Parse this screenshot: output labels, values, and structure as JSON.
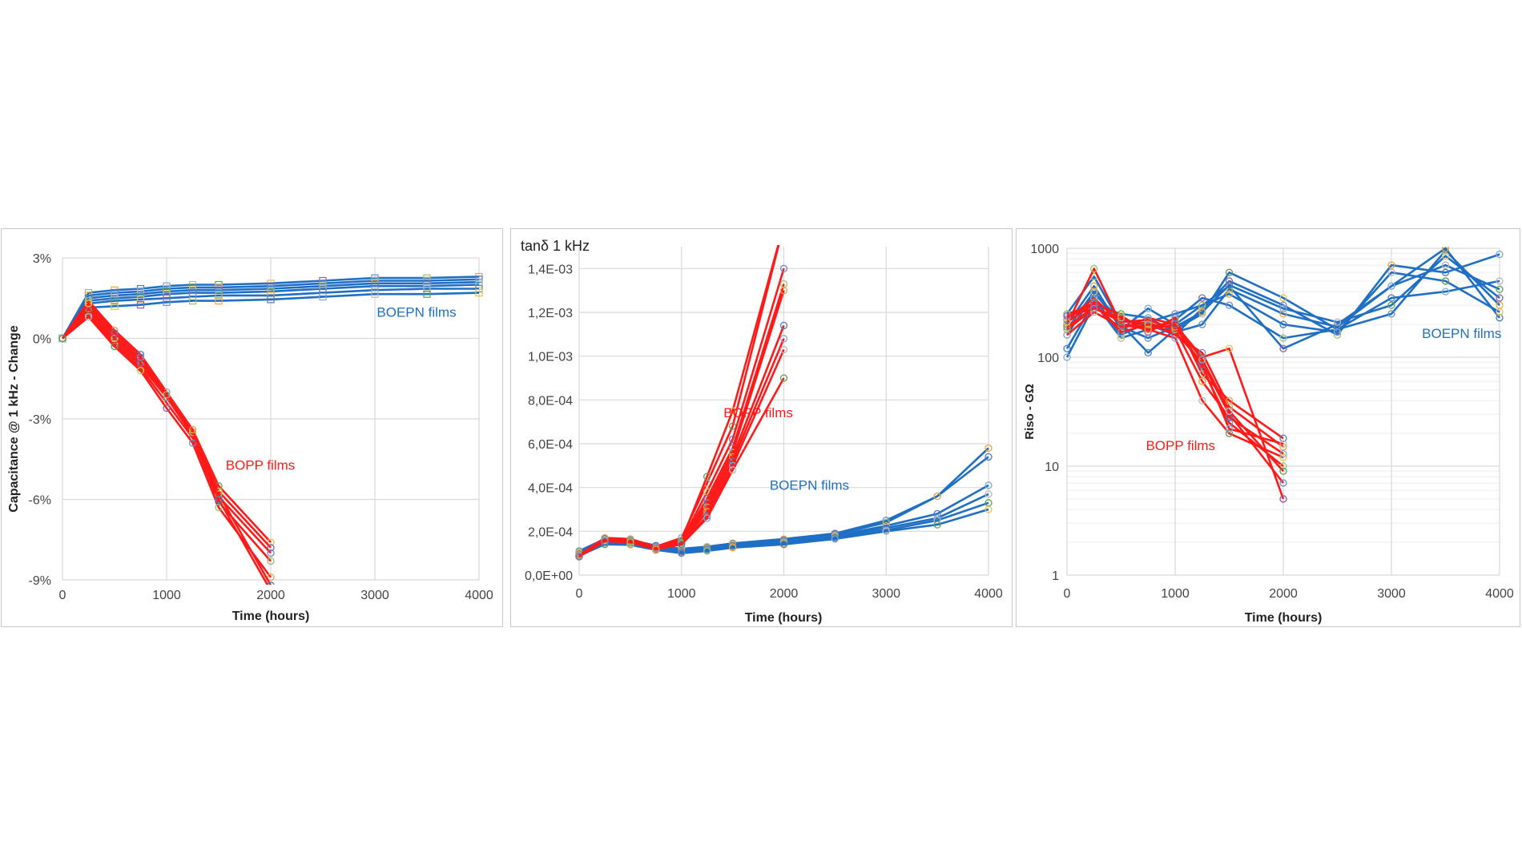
{
  "colors": {
    "bopp": "#ff1a1a",
    "boepn": "#1f6fc5"
  },
  "chart_data": [
    {
      "type": "line",
      "ylabel": "Capacitance @ 1 kHz - Change",
      "xlabel": "Time (hours)",
      "xlim": [
        0,
        4000
      ],
      "ylim": [
        -9,
        3
      ],
      "xticks": [
        0,
        1000,
        2000,
        3000,
        4000
      ],
      "xtick_labels": [
        "0",
        "1000",
        "2000",
        "3000",
        "4000"
      ],
      "yticks": [
        3,
        0,
        -3,
        -6,
        -9
      ],
      "ytick_labels": [
        "3%",
        "0%",
        "-3%",
        "-6%",
        "-9%"
      ],
      "annotations": [
        {
          "text": "BOEPN films",
          "x": 3400,
          "y": 0.8,
          "color": "boepn"
        },
        {
          "text": "BOPP films",
          "x": 1900,
          "y": -4.9,
          "color": "bopp"
        }
      ],
      "group_b": {
        "x": [
          0,
          250,
          500,
          750,
          1000,
          1250,
          1500,
          2000,
          2500,
          3000,
          3500,
          4000
        ],
        "lines": [
          [
            0,
            1.7,
            1.8,
            1.85,
            1.95,
            2.0,
            2.0,
            2.05,
            2.15,
            2.25,
            2.25,
            2.3
          ],
          [
            0,
            1.6,
            1.7,
            1.75,
            1.85,
            1.9,
            1.9,
            1.95,
            2.05,
            2.15,
            2.15,
            2.2
          ],
          [
            0,
            1.5,
            1.6,
            1.65,
            1.75,
            1.8,
            1.8,
            1.85,
            1.95,
            2.05,
            2.05,
            2.1
          ],
          [
            0,
            1.4,
            1.5,
            1.55,
            1.65,
            1.7,
            1.7,
            1.75,
            1.85,
            1.95,
            1.95,
            2.0
          ],
          [
            0,
            1.3,
            1.4,
            1.45,
            1.5,
            1.55,
            1.6,
            1.6,
            1.7,
            1.8,
            1.85,
            1.85
          ],
          [
            0,
            1.15,
            1.2,
            1.25,
            1.35,
            1.4,
            1.4,
            1.45,
            1.55,
            1.65,
            1.65,
            1.7
          ]
        ]
      },
      "group_a": {
        "x": [
          0,
          250,
          500,
          750,
          1000,
          1250,
          1500,
          2000
        ],
        "lines": [
          [
            0,
            1.4,
            0.3,
            -0.6,
            -2.0,
            -3.4,
            -5.5,
            -7.6
          ],
          [
            0,
            1.2,
            0.1,
            -0.8,
            -2.1,
            -3.5,
            -5.7,
            -7.8
          ],
          [
            0,
            1.0,
            -0.1,
            -1.0,
            -2.2,
            -3.6,
            -5.9,
            -8.0
          ],
          [
            0,
            0.9,
            -0.2,
            -1.1,
            -2.4,
            -3.7,
            -6.1,
            -8.3
          ],
          [
            0,
            0.8,
            -0.3,
            -1.2,
            -2.6,
            -3.9,
            -6.3,
            -8.9
          ],
          [
            0,
            1.1,
            0.0,
            -0.9,
            -2.2,
            -3.5,
            -5.8,
            -9.2
          ],
          [
            0,
            1.3,
            0.2,
            -0.7,
            -2.1,
            -3.4,
            -6.0,
            -9.4
          ]
        ]
      }
    },
    {
      "type": "line",
      "title": "tanδ 1 kHz",
      "xlabel": "Time (hours)",
      "xlim": [
        0,
        4000
      ],
      "ylim": [
        0,
        0.0015
      ],
      "xticks": [
        0,
        1000,
        2000,
        3000,
        4000
      ],
      "xtick_labels": [
        "0",
        "1000",
        "2000",
        "3000",
        "4000"
      ],
      "yticks": [
        0,
        0.0002,
        0.0004,
        0.0006,
        0.0008,
        0.001,
        0.0012,
        0.0014
      ],
      "ytick_labels": [
        "0,0E+00",
        "2,0E-04",
        "4,0E-04",
        "6,0E-04",
        "8,0E-04",
        "1,0E-03",
        "1,2E-03",
        "1,4E-03"
      ],
      "annotations": [
        {
          "text": "BOPP films",
          "x": 1750,
          "y": 0.00072,
          "color": "bopp"
        },
        {
          "text": "BOEPN films",
          "x": 2250,
          "y": 0.00039,
          "color": "boepn"
        }
      ],
      "group_b": {
        "x": [
          0,
          250,
          500,
          750,
          1000,
          1250,
          1500,
          2000,
          2500,
          3000,
          3500,
          4000
        ],
        "lines": [
          [
            0.00011,
            0.000165,
            0.00016,
            0.000135,
            0.00012,
            0.00013,
            0.000145,
            0.000165,
            0.00019,
            0.00025,
            0.00036,
            0.00058
          ],
          [
            0.000105,
            0.00016,
            0.000155,
            0.00013,
            0.000115,
            0.000125,
            0.00014,
            0.00016,
            0.000185,
            0.00024,
            0.00036,
            0.00054
          ],
          [
            0.0001,
            0.000155,
            0.00015,
            0.000125,
            0.00011,
            0.00012,
            0.000135,
            0.000155,
            0.00018,
            0.000225,
            0.00028,
            0.00041
          ],
          [
            9.5e-05,
            0.00015,
            0.000145,
            0.00012,
            0.000108,
            0.000118,
            0.00013,
            0.00015,
            0.000175,
            0.000215,
            0.00026,
            0.00037
          ],
          [
            9e-05,
            0.000145,
            0.00014,
            0.000118,
            0.000105,
            0.000115,
            0.000128,
            0.000145,
            0.00017,
            0.000205,
            0.00025,
            0.00033
          ],
          [
            8.8e-05,
            0.00014,
            0.000138,
            0.000115,
            0.0001,
            0.00011,
            0.000125,
            0.00014,
            0.000165,
            0.0002,
            0.00023,
            0.0003
          ]
        ]
      },
      "group_a": {
        "x": [
          0,
          250,
          500,
          750,
          1000,
          1250,
          1500,
          2000
        ],
        "lines": [
          [
            9e-05,
            0.00017,
            0.000165,
            0.00013,
            0.00017,
            0.00042,
            0.00068,
            0.0016
          ],
          [
            9.2e-05,
            0.000168,
            0.00016,
            0.000128,
            0.00016,
            0.00045,
            0.00075,
            0.0016
          ],
          [
            9e-05,
            0.000165,
            0.000158,
            0.000125,
            0.000155,
            0.00038,
            0.00062,
            0.0014
          ],
          [
            8.8e-05,
            0.00016,
            0.000155,
            0.000122,
            0.00015,
            0.00035,
            0.00058,
            0.00133
          ],
          [
            8.7e-05,
            0.000162,
            0.000156,
            0.000125,
            0.00015,
            0.00033,
            0.00056,
            0.0013
          ],
          [
            8.6e-05,
            0.00016,
            0.000154,
            0.000124,
            0.000148,
            0.00031,
            0.00054,
            0.00114
          ],
          [
            8.5e-05,
            0.000158,
            0.000152,
            0.00012,
            0.000145,
            0.00029,
            0.00052,
            0.00108
          ],
          [
            8.5e-05,
            0.000155,
            0.00015,
            0.000118,
            0.00014,
            0.00027,
            0.0005,
            0.00103
          ],
          [
            8.4e-05,
            0.000155,
            0.00015,
            0.000118,
            0.00014,
            0.00026,
            0.00048,
            0.0009
          ]
        ]
      }
    },
    {
      "type": "line",
      "ylabel": "Riso - GΩ",
      "xlabel": "Time (hours)",
      "xlim": [
        0,
        4000
      ],
      "ylim": [
        1,
        1000
      ],
      "yscale": "log",
      "xticks": [
        0,
        1000,
        2000,
        3000,
        4000
      ],
      "xtick_labels": [
        "0",
        "1000",
        "2000",
        "3000",
        "4000"
      ],
      "yticks": [
        1,
        10,
        100,
        1000
      ],
      "ytick_labels": [
        "1",
        "10",
        "100",
        "1000"
      ],
      "annotations": [
        {
          "text": "BOEPN films",
          "x": 3650,
          "y": 150,
          "color": "boepn"
        },
        {
          "text": "BOPP films",
          "x": 1050,
          "y": 14,
          "color": "bopp"
        }
      ],
      "group_b": {
        "x": [
          0,
          250,
          500,
          750,
          1000,
          1250,
          1500,
          2000,
          2500,
          3000,
          3500,
          4000
        ],
        "lines": [
          [
            250,
            550,
            200,
            110,
            180,
            250,
            600,
            350,
            180,
            250,
            950,
            300
          ],
          [
            200,
            450,
            180,
            280,
            200,
            300,
            450,
            120,
            200,
            450,
            1000,
            230
          ],
          [
            160,
            380,
            220,
            200,
            160,
            280,
            500,
            300,
            160,
            700,
            600,
            880
          ],
          [
            120,
            320,
            150,
            180,
            220,
            350,
            300,
            150,
            180,
            350,
            400,
            500
          ],
          [
            100,
            300,
            250,
            230,
            170,
            200,
            420,
            250,
            190,
            450,
            700,
            420
          ],
          [
            220,
            350,
            160,
            210,
            250,
            300,
            380,
            200,
            170,
            600,
            500,
            260
          ],
          [
            180,
            400,
            190,
            150,
            190,
            260,
            460,
            280,
            210,
            300,
            850,
            350
          ]
        ]
      },
      "group_a": {
        "x": [
          0,
          250,
          500,
          750,
          1000,
          1250,
          1500,
          2000
        ],
        "lines": [
          [
            200,
            650,
            200,
            180,
            150,
            40,
            20,
            12
          ],
          [
            250,
            300,
            180,
            230,
            200,
            100,
            120,
            5
          ],
          [
            180,
            280,
            220,
            200,
            170,
            90,
            30,
            7
          ],
          [
            220,
            350,
            200,
            190,
            210,
            80,
            25,
            10
          ],
          [
            160,
            260,
            190,
            210,
            160,
            110,
            35,
            15
          ],
          [
            230,
            320,
            240,
            170,
            230,
            70,
            40,
            18
          ],
          [
            190,
            290,
            210,
            220,
            180,
            60,
            28,
            13
          ],
          [
            210,
            310,
            170,
            200,
            190,
            85,
            22,
            16
          ],
          [
            240,
            280,
            230,
            180,
            200,
            95,
            32,
            9
          ]
        ]
      }
    }
  ]
}
